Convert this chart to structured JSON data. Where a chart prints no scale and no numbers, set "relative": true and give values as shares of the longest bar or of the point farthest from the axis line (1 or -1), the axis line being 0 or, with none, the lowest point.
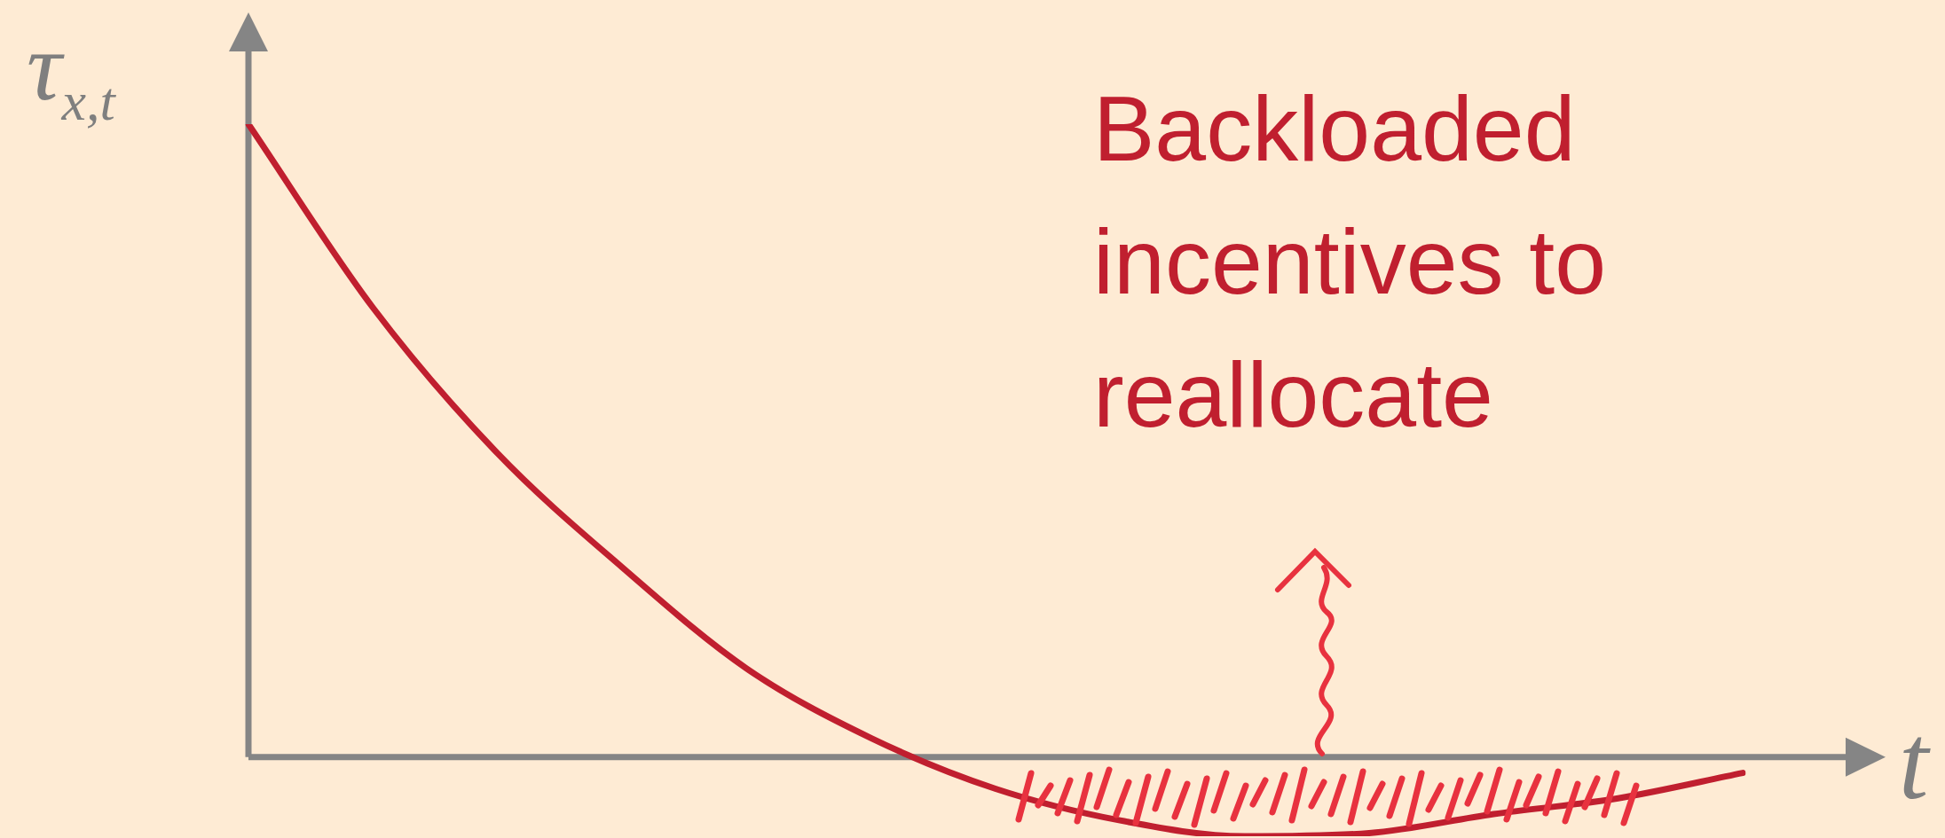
{
  "chart_data": {
    "type": "line",
    "relative": true,
    "xlabel": "t",
    "ylabel": "τ$_{x,t}$",
    "categories": [
      null,
      null,
      null,
      null,
      null,
      null,
      null,
      null,
      null,
      null,
      null,
      null,
      null
    ],
    "series": [
      {
        "color": "#c01f2f",
        "values": [
          1.0,
          0.71,
          0.48,
          0.3,
          0.14,
          0.03,
          -0.05,
          -0.1,
          -0.125,
          -0.12,
          -0.09,
          -0.065,
          -0.025
        ]
      }
    ],
    "annotations": [
      "Backloaded incentives to reallocate"
    ],
    "legend": false,
    "marker": "none",
    "line_style": "solid"
  }
}
